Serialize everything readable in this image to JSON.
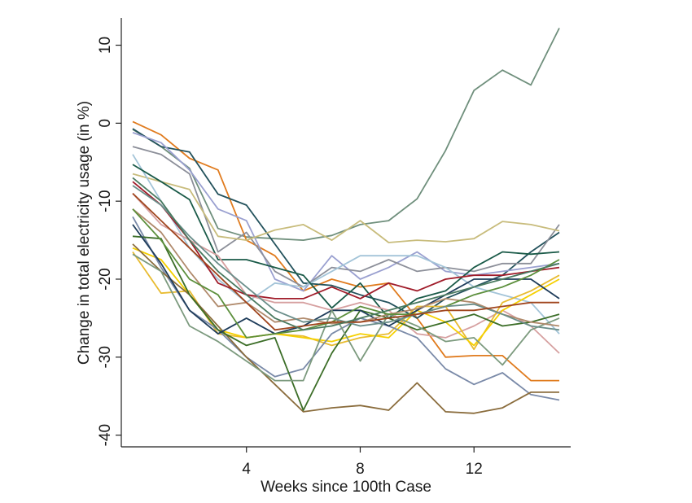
{
  "chart_data": {
    "type": "line",
    "title": "",
    "xlabel": "Weeks since 100th Case",
    "ylabel": "Change in total electricity usage (in %)",
    "xlim": [
      -0.4,
      15.4
    ],
    "ylim": [
      -41.5,
      13.5
    ],
    "xticks": [
      4,
      8,
      12
    ],
    "yticks": [
      -40,
      -30,
      -20,
      -10,
      0,
      10
    ],
    "grid": false,
    "legend": "none",
    "x": [
      0,
      1,
      2,
      3,
      4,
      5,
      6,
      7,
      8,
      9,
      10,
      11,
      12,
      13,
      14,
      15
    ],
    "series": [
      {
        "color": "#6f8f7c",
        "values": [
          -0.8,
          -3,
          -5.8,
          -13.5,
          -14.6,
          -14.8,
          -15,
          -14.4,
          -13,
          -12.5,
          -9.7,
          -3.5,
          4.2,
          6.8,
          4.9,
          12.2
        ]
      },
      {
        "color": "#e07b1e",
        "values": [
          0.2,
          -1.5,
          -4.5,
          -6,
          -15,
          -17,
          -21.5,
          -20,
          -21,
          -20.5,
          -25,
          -30,
          -29.8,
          -29.8,
          -33,
          -33
        ]
      },
      {
        "color": "#23525c",
        "values": [
          -0.7,
          -3,
          -3.7,
          -9.1,
          -10.5,
          -15.5,
          -20.5,
          -20.8,
          -22,
          -23,
          -25,
          -22.5,
          -21,
          -19.5,
          -16.5,
          -14
        ]
      },
      {
        "color": "#9aa0d0",
        "values": [
          -1.2,
          -2.5,
          -6,
          -11,
          -12.5,
          -20,
          -21.5,
          -17,
          -20,
          -18.5,
          -16.5,
          -19,
          -19.5,
          -19,
          -18.5,
          -18
        ]
      },
      {
        "color": "#8c8f99",
        "values": [
          -3,
          -4,
          -6.5,
          -16.5,
          -14,
          -19,
          -21,
          -18.5,
          -19,
          -17.5,
          -19,
          -18.5,
          -19,
          -18,
          -18,
          -13
        ]
      },
      {
        "color": "#c8bc7c",
        "values": [
          -6.5,
          -7.5,
          -8.5,
          -14.5,
          -15,
          -13.7,
          -13,
          -15,
          -12.5,
          -15.3,
          -15,
          -15.2,
          -14.8,
          -12.6,
          -13,
          -13.8
        ]
      },
      {
        "color": "#a3c4d8",
        "values": [
          -4,
          -10,
          -16,
          -20,
          -23,
          -20.5,
          -21,
          -19,
          -17,
          -17,
          -17,
          -18.5,
          -21,
          -22,
          -23,
          -27
        ]
      },
      {
        "color": "#1a5a48",
        "values": [
          -5.3,
          -7.5,
          -9.8,
          -17.5,
          -17.5,
          -18.5,
          -19.5,
          -23.7,
          -20.5,
          -25,
          -22.5,
          -21.5,
          -18.5,
          -16.5,
          -16.8,
          -16.5
        ]
      },
      {
        "color": "#d6a0a0",
        "values": [
          -9,
          -13,
          -15,
          -17,
          -22,
          -23,
          -23,
          -24,
          -23,
          -24,
          -27,
          -27.5,
          -26,
          -24,
          -26,
          -29.5
        ]
      },
      {
        "color": "#a01c2a",
        "values": [
          -7.5,
          -10.5,
          -15,
          -20.5,
          -22,
          -22.5,
          -22.5,
          -21,
          -22.5,
          -20.5,
          -21.5,
          -20,
          -19.5,
          -19.5,
          -19,
          -18.5
        ]
      },
      {
        "color": "#e8bb30",
        "values": [
          -16.5,
          -21.8,
          -21.5,
          -27,
          -27.5,
          -27,
          -27.3,
          -28.5,
          -27.5,
          -27,
          -23.5,
          -23.5,
          -29,
          -23,
          -21.5,
          -19.5
        ]
      },
      {
        "color": "#f5d000",
        "values": [
          -16,
          -17.5,
          -22,
          -26.5,
          -27.5,
          -27,
          -27.5,
          -28,
          -27,
          -27.5,
          -24,
          -25.5,
          -28.5,
          -24,
          -22,
          -20
        ]
      },
      {
        "color": "#7a8aa8",
        "values": [
          -12,
          -18.5,
          -24,
          -26.5,
          -30,
          -32.5,
          -31.5,
          -27,
          -25,
          -26,
          -27.5,
          -31.5,
          -33.5,
          -32,
          -34.8,
          -35.5
        ]
      },
      {
        "color": "#8a6c3c",
        "values": [
          -15.5,
          -19,
          -22,
          -26,
          -30,
          -33.5,
          -37,
          -36.5,
          -36.2,
          -36.8,
          -33.3,
          -37,
          -37.2,
          -36.5,
          -34.5,
          -34.5
        ]
      },
      {
        "color": "#3c6e28",
        "values": [
          -14.5,
          -14.8,
          -22,
          -26.5,
          -28.5,
          -27.5,
          -36.8,
          -29.5,
          -24,
          -25,
          -26.5,
          -25.5,
          -24.5,
          -26,
          -25.5,
          -24.5
        ]
      },
      {
        "color": "#1e3c5a",
        "values": [
          -13,
          -18,
          -24,
          -27,
          -25,
          -27,
          -26,
          -24,
          -24,
          -26,
          -24,
          -22,
          -20,
          -20,
          -20,
          -22.5
        ]
      },
      {
        "color": "#7c9a7e",
        "values": [
          -16.8,
          -19,
          -26,
          -28,
          -30.5,
          -33,
          -33,
          -24,
          -30.5,
          -24.5,
          -26,
          -28,
          -27.5,
          -31,
          -26.5,
          -25
        ]
      },
      {
        "color": "#b08a6c",
        "values": [
          -11,
          -14,
          -19,
          -23.5,
          -23,
          -25.5,
          -25,
          -25.7,
          -25.5,
          -24.5,
          -23.8,
          -22.5,
          -23,
          -24.5,
          -25.5,
          -26
        ]
      },
      {
        "color": "#5c8f3c",
        "values": [
          -11,
          -15,
          -20,
          -22,
          -27.5,
          -27,
          -26.5,
          -25.5,
          -23.5,
          -24.5,
          -24.5,
          -23.5,
          -22,
          -21,
          -19.5,
          -17.5
        ]
      },
      {
        "color": "#6a8e8a",
        "values": [
          -8,
          -10.5,
          -14.5,
          -18,
          -21,
          -24,
          -25.5,
          -25,
          -26,
          -25.5,
          -24.5,
          -23.5,
          -23.2,
          -24.5,
          -26,
          -26.5
        ]
      },
      {
        "color": "#a0461e",
        "values": [
          -9,
          -12.5,
          -16,
          -19.5,
          -23,
          -26.5,
          -26,
          -25.5,
          -25.5,
          -25,
          -24.5,
          -24,
          -24,
          -23.5,
          -23,
          -23
        ]
      },
      {
        "color": "#4a7a60",
        "values": [
          -7,
          -10,
          -15,
          -19,
          -22,
          -25,
          -26.5,
          -26,
          -25,
          -24,
          -23,
          -22,
          -21,
          -20,
          -19,
          -18
        ]
      }
    ]
  }
}
